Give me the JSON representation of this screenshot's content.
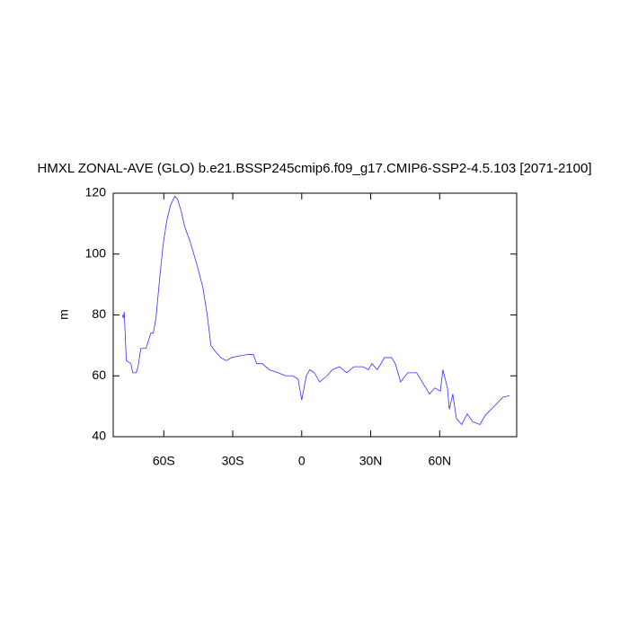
{
  "chart_data": {
    "type": "line",
    "title": "HMXL ZONAL-AVE (GLO) b.e21.BSSP245cmip6.f09_g17.CMIP6-SSP2-4.5.103 [2071-2100]",
    "y_label": "m",
    "x": [
      -78,
      -77.6,
      -77.2,
      -76.3,
      -74.3,
      -73.5,
      -72,
      -71.2,
      -70,
      -67.7,
      -65.7,
      -64.6,
      -63.4,
      -61.8,
      -60.3,
      -58.7,
      -57.1,
      -55.2,
      -54,
      -52.4,
      -50.9,
      -48.5,
      -45.4,
      -43,
      -41.1,
      -39.5,
      -37.6,
      -35.2,
      -32.9,
      -30.5,
      -27.4,
      -23.5,
      -21.1,
      -19.6,
      -17.2,
      -14.1,
      -10.2,
      -7,
      -3.9,
      -1.6,
      0,
      2,
      3.5,
      5.5,
      7.8,
      11,
      13.3,
      16.4,
      19.6,
      22.7,
      26.6,
      29,
      30.5,
      32.9,
      36,
      39.1,
      40.7,
      43,
      46.1,
      50,
      52.4,
      55.6,
      57.9,
      60.3,
      61.4,
      63.4,
      64.2,
      65.7,
      67.3,
      69.6,
      72,
      74.3,
      77.5,
      79.8,
      83.7,
      87.6,
      90.4
    ],
    "values": [
      80,
      79,
      81,
      65,
      64,
      61,
      61,
      63,
      69,
      69,
      74,
      74,
      79,
      92,
      103,
      111,
      116,
      119,
      118,
      114,
      109,
      104,
      96,
      89,
      80,
      70,
      68,
      66,
      65,
      66,
      66.5,
      67,
      67,
      64,
      64,
      62,
      61,
      60,
      60,
      59,
      52,
      60,
      62,
      61,
      58,
      60,
      62,
      63,
      61,
      63,
      63,
      62,
      64,
      62,
      66,
      66,
      64,
      58,
      61,
      61,
      58,
      54,
      56,
      55,
      62,
      56,
      49,
      54,
      46,
      44,
      47.5,
      45,
      44,
      47,
      50,
      53,
      53.5
    ],
    "color": "#3030ff",
    "xlim": [
      -82,
      93.5
    ],
    "ylim": [
      40,
      120
    ],
    "xticks": [
      {
        "value": -60,
        "label": "60S"
      },
      {
        "value": -30,
        "label": "30S"
      },
      0,
      {
        "value": 30,
        "label": "30N"
      },
      {
        "value": 60,
        "label": "60N"
      }
    ],
    "yticks": [
      40,
      60,
      80,
      100,
      120
    ]
  }
}
